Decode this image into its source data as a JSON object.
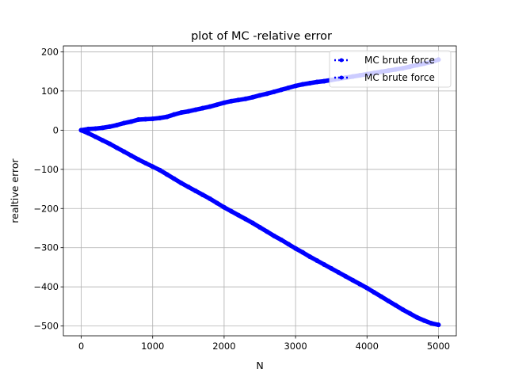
{
  "chart_data": {
    "type": "line",
    "title": "plot of MC -relative error",
    "xlabel": "N",
    "ylabel": "realtive error",
    "xlim": [
      -250,
      5250
    ],
    "ylim": [
      -525,
      215
    ],
    "xticks": [
      0,
      1000,
      2000,
      3000,
      4000,
      5000
    ],
    "yticks": [
      -500,
      -400,
      -300,
      -200,
      -100,
      0,
      100,
      200
    ],
    "xtick_labels": [
      "0",
      "1000",
      "2000",
      "3000",
      "4000",
      "5000"
    ],
    "ytick_labels": [
      "−500",
      "−400",
      "−300",
      "−200",
      "−100",
      "0",
      "100",
      "200"
    ],
    "grid": true,
    "legend_position": "top-right",
    "series": [
      {
        "name": "MC brute force",
        "color": "#0000ff",
        "x": [
          0,
          100,
          200,
          300,
          400,
          500,
          600,
          700,
          800,
          900,
          1000,
          1100,
          1200,
          1300,
          1400,
          1500,
          1600,
          1700,
          1800,
          1900,
          2000,
          2100,
          2200,
          2300,
          2400,
          2500,
          2600,
          2700,
          2800,
          2900,
          3000,
          3100,
          3200,
          3300,
          3400,
          3500,
          3600,
          3700,
          3800,
          3900,
          4000,
          4100,
          4200,
          4300,
          4400,
          4500,
          4600,
          4700,
          4800,
          4900,
          5000
        ],
        "y": [
          0,
          3,
          4,
          6,
          9,
          13,
          18,
          22,
          27,
          28,
          29,
          31,
          34,
          40,
          45,
          48,
          52,
          56,
          60,
          65,
          70,
          74,
          77,
          80,
          84,
          89,
          93,
          98,
          103,
          108,
          113,
          117,
          120,
          123,
          125,
          128,
          131,
          134,
          137,
          140,
          143,
          146,
          149,
          152,
          155,
          158,
          162,
          166,
          170,
          174,
          180
        ]
      },
      {
        "name": "MC brute force",
        "color": "#0000ff",
        "x": [
          0,
          100,
          200,
          300,
          400,
          500,
          600,
          700,
          800,
          900,
          1000,
          1100,
          1200,
          1300,
          1400,
          1500,
          1600,
          1700,
          1800,
          1900,
          2000,
          2100,
          2200,
          2300,
          2400,
          2500,
          2600,
          2700,
          2800,
          2900,
          3000,
          3100,
          3200,
          3300,
          3400,
          3500,
          3600,
          3700,
          3800,
          3900,
          4000,
          4100,
          4200,
          4300,
          4400,
          4500,
          4600,
          4700,
          4800,
          4900,
          5000
        ],
        "y": [
          0,
          -8,
          -17,
          -26,
          -35,
          -45,
          -55,
          -65,
          -75,
          -84,
          -93,
          -102,
          -113,
          -124,
          -135,
          -145,
          -155,
          -165,
          -175,
          -186,
          -197,
          -207,
          -217,
          -227,
          -237,
          -248,
          -259,
          -270,
          -280,
          -291,
          -302,
          -312,
          -323,
          -333,
          -343,
          -353,
          -363,
          -373,
          -383,
          -393,
          -403,
          -414,
          -425,
          -436,
          -447,
          -458,
          -468,
          -478,
          -486,
          -493,
          -497
        ]
      }
    ]
  }
}
